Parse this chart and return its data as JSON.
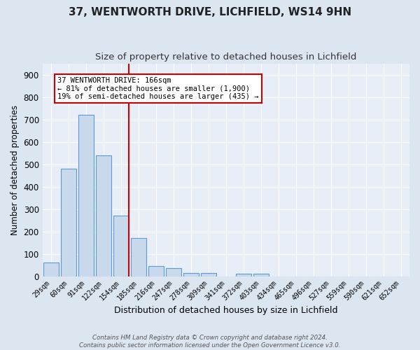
{
  "title": "37, WENTWORTH DRIVE, LICHFIELD, WS14 9HN",
  "subtitle": "Size of property relative to detached houses in Lichfield",
  "xlabel": "Distribution of detached houses by size in Lichfield",
  "ylabel": "Number of detached properties",
  "bin_labels": [
    "29sqm",
    "60sqm",
    "91sqm",
    "122sqm",
    "154sqm",
    "185sqm",
    "216sqm",
    "247sqm",
    "278sqm",
    "309sqm",
    "341sqm",
    "372sqm",
    "403sqm",
    "434sqm",
    "465sqm",
    "496sqm",
    "527sqm",
    "559sqm",
    "590sqm",
    "621sqm",
    "652sqm"
  ],
  "bar_values": [
    60,
    480,
    720,
    540,
    270,
    170,
    47,
    35,
    15,
    13,
    0,
    10,
    10,
    0,
    0,
    0,
    0,
    0,
    0,
    0,
    0
  ],
  "bar_color": "#c9d9ec",
  "bar_edge_color": "#5b9bd5",
  "red_line_label_title": "37 WENTWORTH DRIVE: 166sqm",
  "red_line_label_line2": "← 81% of detached houses are smaller (1,900)",
  "red_line_label_line3": "19% of semi-detached houses are larger (435) →",
  "annotation_box_color": "white",
  "red_line_color": "#cc0000",
  "ylim": [
    0,
    950
  ],
  "yticks": [
    0,
    100,
    200,
    300,
    400,
    500,
    600,
    700,
    800,
    900
  ],
  "plot_bg_color": "#e8eef7",
  "fig_bg_color": "#dce6f1",
  "grid_color": "white",
  "footer_line1": "Contains HM Land Registry data © Crown copyright and database right 2024.",
  "footer_line2": "Contains public sector information licensed under the Open Government Licence v3.0."
}
